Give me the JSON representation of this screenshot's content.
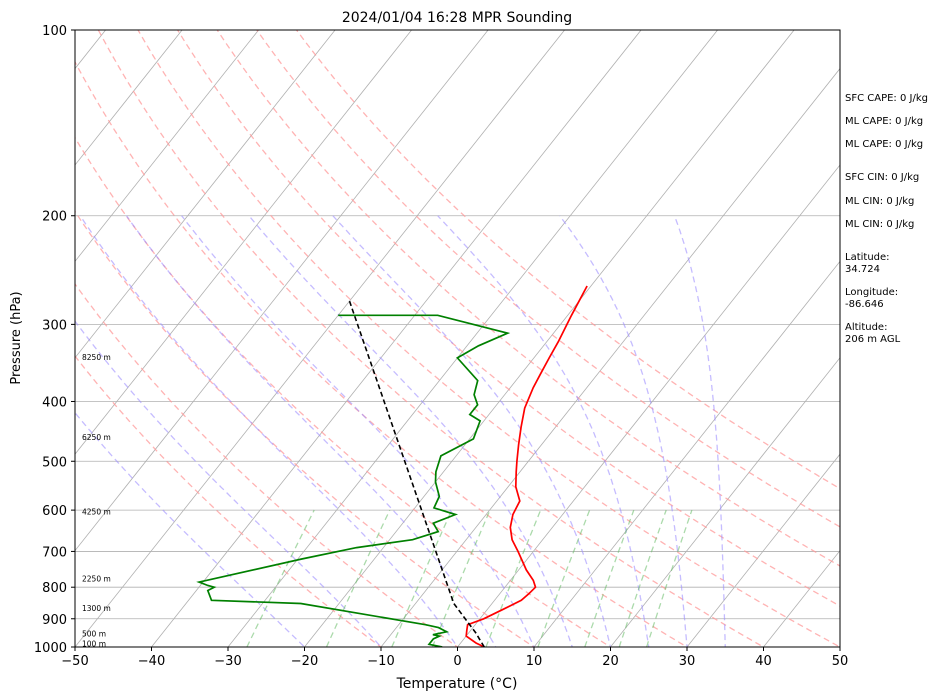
{
  "chart_data": {
    "type": "line",
    "title": "2024/01/04 16:28 MPR Sounding",
    "xlabel": "Temperature (°C)",
    "ylabel": "Pressure (hPa)",
    "xlim": [
      -50,
      50
    ],
    "ylim": [
      1000,
      100
    ],
    "y_scale": "log",
    "x_ticks": [
      "−50",
      "−40",
      "−30",
      "−20",
      "−10",
      "0",
      "10",
      "20",
      "30",
      "40",
      "50"
    ],
    "y_ticks": [
      1000,
      900,
      800,
      700,
      600,
      500,
      400,
      300,
      200,
      100
    ],
    "grid": true,
    "skew_per_decade": 64,
    "series": [
      {
        "color": "#ff0000",
        "x": [
          3.5,
          2.0,
          0.0,
          -0.5,
          -1.0,
          0.5,
          2.0,
          3.5,
          3.8,
          4.0,
          3.0,
          1.0,
          -2.0,
          -4.0,
          -5.5,
          -6.5,
          -7.0,
          -9.0,
          -10.5,
          -11.5,
          -13.0,
          -14.5,
          -16.0,
          -17.0,
          -17.5,
          -18.0,
          -18.5,
          -19.5,
          -20.5
        ],
        "y": [
          1000,
          985,
          960,
          940,
          920,
          900,
          870,
          840,
          820,
          800,
          780,
          750,
          700,
          670,
          640,
          610,
          580,
          550,
          520,
          500,
          470,
          440,
          410,
          380,
          360,
          340,
          320,
          290,
          260
        ]
      },
      {
        "color": "#008000",
        "x": [
          -2.0,
          -4.0,
          -4.0,
          -3.5,
          -4.5,
          -3.0,
          -4.5,
          -6.5,
          -25.0,
          -37.0,
          -38.5,
          -38.0,
          -39.0,
          -40.5,
          -29.5,
          -23.5,
          -17.0,
          -14.5,
          -16.0,
          -14.0,
          -17.5,
          -18.0,
          -20.0,
          -21.0,
          -22.0,
          -19.5,
          -20.5,
          -22.5,
          -22.5,
          -24.0,
          -25.0,
          -30.0,
          -28.5,
          -26.0,
          -37.0,
          -50.0
        ],
        "y": [
          1000,
          990,
          970,
          960,
          955,
          945,
          930,
          920,
          850,
          840,
          810,
          800,
          795,
          785,
          720,
          690,
          670,
          650,
          630,
          610,
          595,
          570,
          540,
          520,
          490,
          460,
          430,
          420,
          405,
          390,
          370,
          340,
          325,
          310,
          290,
          290
        ]
      },
      {
        "color": "#000000",
        "dashed": true,
        "x": [
          3.5,
          2.0,
          1.0,
          -5.0,
          -50.0
        ],
        "y": [
          1000,
          970,
          950,
          850,
          275
        ]
      }
    ],
    "height_labels": [
      {
        "text": "100 m",
        "y": 990
      },
      {
        "text": "500 m",
        "y": 955
      },
      {
        "text": "1300 m",
        "y": 868
      },
      {
        "text": "2250 m",
        "y": 778
      },
      {
        "text": "4250 m",
        "y": 605
      },
      {
        "text": "6250 m",
        "y": 458
      },
      {
        "text": "8250 m",
        "y": 340
      }
    ],
    "dry_adiabats_theta": [
      -10,
      0,
      10,
      20,
      30,
      40,
      50,
      60,
      70,
      80,
      90
    ],
    "moist_adiabats_t": [
      -20,
      -10,
      0,
      5,
      10,
      15,
      20,
      25,
      30,
      35
    ],
    "mixing_ratios": [
      0.4,
      1,
      2,
      3,
      5,
      8,
      12,
      16,
      20
    ]
  },
  "indices": {
    "sfc_cape": "SFC CAPE: 0 J/kg",
    "ml_cape_1": "ML CAPE: 0 J/kg",
    "ml_cape_2": "ML CAPE: 0 J/kg",
    "sfc_cin": "SFC CIN: 0 J/kg",
    "ml_cin_1": "ML CIN: 0 J/kg",
    "ml_cin_2": "ML CIN: 0 J/kg"
  },
  "station": {
    "latitude_label": "Latitude:",
    "latitude_value": "34.724",
    "longitude_label": "Longitude:",
    "longitude_value": "-86.646",
    "altitude_label": "Altitude:",
    "altitude_value": "206 m AGL"
  }
}
